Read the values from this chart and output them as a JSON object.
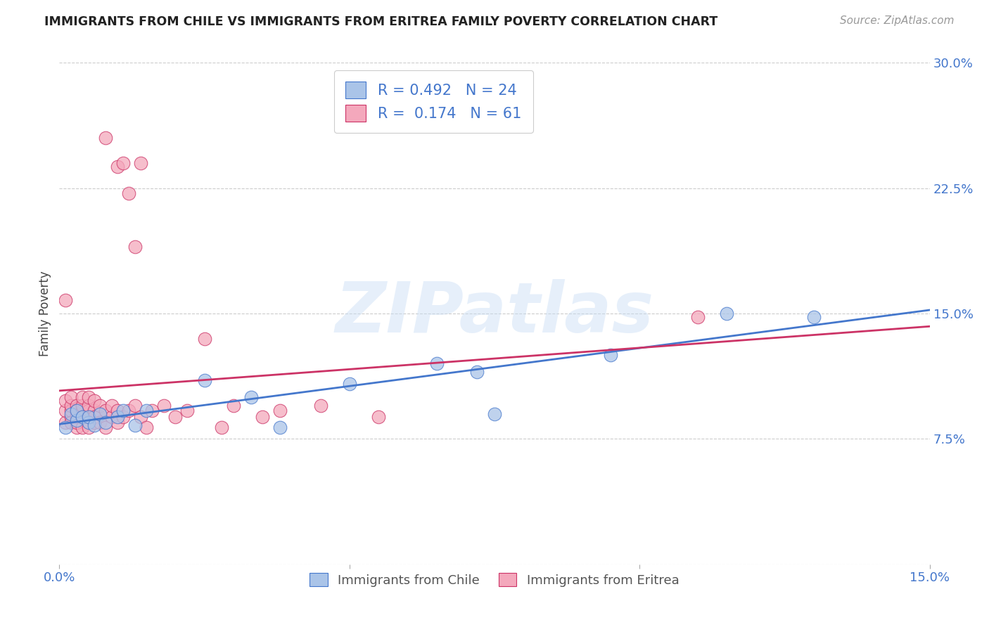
{
  "title": "IMMIGRANTS FROM CHILE VS IMMIGRANTS FROM ERITREA FAMILY POVERTY CORRELATION CHART",
  "source": "Source: ZipAtlas.com",
  "ylabel": "Family Poverty",
  "xlim": [
    0.0,
    0.15
  ],
  "ylim": [
    0.0,
    0.3
  ],
  "xticks": [
    0.0,
    0.05,
    0.1,
    0.15
  ],
  "xticklabels": [
    "0.0%",
    "",
    "",
    "15.0%"
  ],
  "yticks": [
    0.0,
    0.075,
    0.15,
    0.225,
    0.3
  ],
  "yticklabels": [
    "",
    "7.5%",
    "15.0%",
    "22.5%",
    "30.0%"
  ],
  "grid_color": "#cccccc",
  "background_color": "#ffffff",
  "watermark": "ZIPatlas",
  "chile_color": "#aac4e8",
  "eritrea_color": "#f4a8bc",
  "chile_line_color": "#4477cc",
  "eritrea_line_color": "#cc3366",
  "chile_R": 0.492,
  "chile_N": 24,
  "eritrea_R": 0.174,
  "eritrea_N": 61,
  "chile_x": [
    0.001,
    0.002,
    0.003,
    0.003,
    0.004,
    0.005,
    0.005,
    0.006,
    0.007,
    0.008,
    0.01,
    0.011,
    0.013,
    0.015,
    0.025,
    0.033,
    0.038,
    0.05,
    0.065,
    0.072,
    0.075,
    0.095,
    0.115,
    0.13
  ],
  "chile_y": [
    0.082,
    0.09,
    0.086,
    0.092,
    0.088,
    0.085,
    0.088,
    0.083,
    0.09,
    0.085,
    0.088,
    0.092,
    0.083,
    0.092,
    0.11,
    0.1,
    0.082,
    0.108,
    0.12,
    0.115,
    0.09,
    0.125,
    0.15,
    0.148
  ],
  "eritrea_x": [
    0.001,
    0.001,
    0.001,
    0.001,
    0.002,
    0.002,
    0.002,
    0.002,
    0.002,
    0.003,
    0.003,
    0.003,
    0.003,
    0.003,
    0.003,
    0.004,
    0.004,
    0.004,
    0.004,
    0.004,
    0.005,
    0.005,
    0.005,
    0.005,
    0.005,
    0.006,
    0.006,
    0.006,
    0.006,
    0.007,
    0.007,
    0.007,
    0.008,
    0.008,
    0.008,
    0.009,
    0.009,
    0.01,
    0.01,
    0.01,
    0.011,
    0.011,
    0.012,
    0.012,
    0.013,
    0.013,
    0.014,
    0.014,
    0.015,
    0.016,
    0.018,
    0.02,
    0.022,
    0.025,
    0.028,
    0.03,
    0.035,
    0.038,
    0.045,
    0.055,
    0.11
  ],
  "eritrea_y": [
    0.085,
    0.092,
    0.098,
    0.158,
    0.088,
    0.092,
    0.095,
    0.1,
    0.085,
    0.09,
    0.082,
    0.095,
    0.088,
    0.092,
    0.085,
    0.082,
    0.092,
    0.088,
    0.095,
    0.1,
    0.088,
    0.092,
    0.082,
    0.095,
    0.1,
    0.085,
    0.092,
    0.098,
    0.088,
    0.09,
    0.085,
    0.095,
    0.082,
    0.092,
    0.255,
    0.088,
    0.095,
    0.085,
    0.092,
    0.238,
    0.088,
    0.24,
    0.092,
    0.222,
    0.095,
    0.19,
    0.088,
    0.24,
    0.082,
    0.092,
    0.095,
    0.088,
    0.092,
    0.135,
    0.082,
    0.095,
    0.088,
    0.092,
    0.095,
    0.088,
    0.148
  ]
}
